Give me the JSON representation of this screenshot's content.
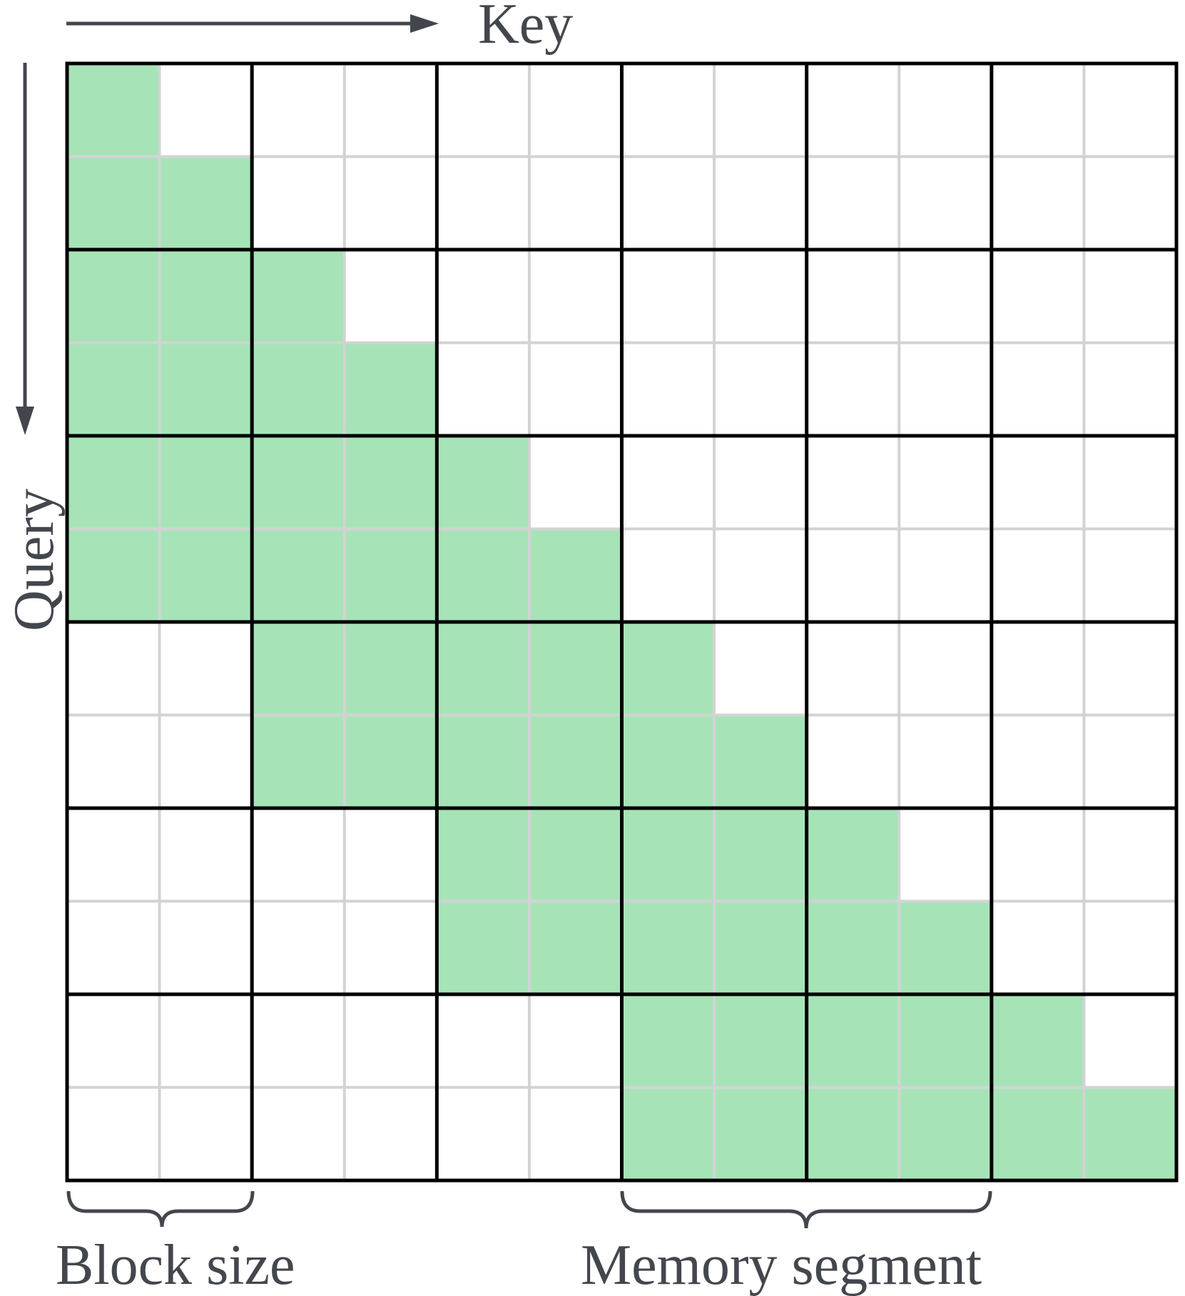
{
  "labels": {
    "key": "Key",
    "query": "Query",
    "block_size": "Block size",
    "memory_segment": "Memory segment"
  },
  "grid": {
    "rows": 12,
    "cols": 12,
    "block_size": 2,
    "memory_blocks": 3
  },
  "colors": {
    "fill": "#a6e4b8",
    "thin_line": "#d3d3d3",
    "thick_line": "#000000",
    "annotation": "#43474d"
  }
}
